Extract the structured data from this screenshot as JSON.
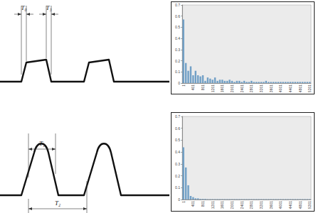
{
  "chart_data": [
    {
      "type": "bar",
      "categories": [
        "1",
        null,
        null,
        null,
        "401",
        null,
        null,
        null,
        "801",
        null,
        null,
        null,
        "1201",
        null,
        null,
        null,
        "1601",
        null,
        null,
        null,
        "2001",
        null,
        null,
        null,
        "2401",
        null,
        null,
        null,
        "2801",
        null,
        null,
        null,
        "3201",
        null,
        null,
        null,
        "3601",
        null,
        null,
        null,
        "4001",
        null,
        null,
        null,
        "4401",
        null,
        null,
        null,
        "4801",
        null,
        null,
        null,
        "5201"
      ],
      "values": [
        0.57,
        0.18,
        0.11,
        0.15,
        0.07,
        0.11,
        0.07,
        0.06,
        0.07,
        0.02,
        0.05,
        0.04,
        0.03,
        0.05,
        0.02,
        0.03,
        0.03,
        0.02,
        0.02,
        0.03,
        0.02,
        0.01,
        0.02,
        0.02,
        0.01,
        0.02,
        0.01,
        0.01,
        0.02,
        0.01,
        0.01,
        0.01,
        0.01,
        0.01,
        0.02,
        0.01,
        0.01,
        0.01,
        0.01,
        0.01,
        0.01,
        0.01,
        0.01,
        0.01,
        0.01,
        0.01,
        0.01,
        0.01,
        0.01,
        0.01,
        0.01,
        0.01,
        0.01
      ],
      "color": "#6f9fc6",
      "ylim": [
        0,
        0.7
      ],
      "yticks": [
        0,
        0.1,
        0.2,
        0.3,
        0.4,
        0.5,
        0.6,
        0.7
      ],
      "grid": false
    },
    {
      "type": "bar",
      "categories": [
        "1",
        null,
        null,
        null,
        "401",
        null,
        null,
        null,
        "801",
        null,
        null,
        null,
        "1201",
        null,
        null,
        null,
        "1601",
        null,
        null,
        null,
        "2001",
        null,
        null,
        null,
        "2401",
        null,
        null,
        null,
        "2801",
        null,
        null,
        null,
        "3201",
        null,
        null,
        null,
        "3601",
        null,
        null,
        null,
        "4001",
        null,
        null,
        null,
        "4401",
        null,
        null,
        null,
        "4801",
        null,
        null,
        null,
        "5201"
      ],
      "values": [
        0.44,
        0.27,
        0.12,
        0.03,
        0.02,
        0.01,
        0.01,
        0.005,
        0.005,
        0.005,
        0.003,
        0.003,
        0.003,
        0.003,
        0.003,
        0.003,
        0.003,
        0.003,
        0.003,
        0.003,
        0.003,
        0.003,
        0.003,
        0.003,
        0.003,
        0.003,
        0.003,
        0.003,
        0.003,
        0.003,
        0.003,
        0.003,
        0.003,
        0.003,
        0.003,
        0.003,
        0.003,
        0.003,
        0.003,
        0.003,
        0.003,
        0.003,
        0.003,
        0.003,
        0.003,
        0.003,
        0.003,
        0.003,
        0.003,
        0.003,
        0.003,
        0.003,
        0.003
      ],
      "color": "#6f9fc6",
      "ylim": [
        0,
        0.7
      ],
      "yticks": [
        0,
        0.1,
        0.2,
        0.3,
        0.4,
        0.5,
        0.6,
        0.7
      ],
      "grid": false
    }
  ],
  "diagram": {
    "waveforms": [
      {
        "shape": "trapezoid",
        "labels": [
          "T₀",
          "T₃"
        ]
      },
      {
        "shape": "rounded",
        "labels": [
          "T₁",
          "T₂"
        ]
      }
    ]
  }
}
